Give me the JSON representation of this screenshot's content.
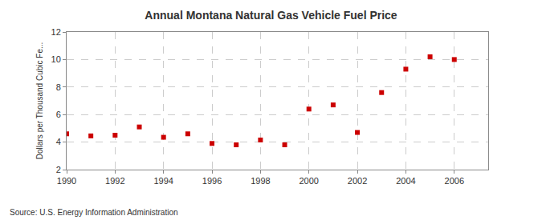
{
  "chart_data": {
    "type": "scatter",
    "title": "Annual Montana Natural Gas Vehicle Fuel Price",
    "y_label": "Dollars per Thousand Cubic Fe...",
    "annotations": [
      "Source: U.S. Energy Information Administration"
    ],
    "x": [
      1990,
      1991,
      1992,
      1993,
      1994,
      1995,
      1996,
      1997,
      1998,
      1999,
      2000,
      2001,
      2002,
      2003,
      2004,
      2005,
      2006
    ],
    "values": [
      4.6,
      4.45,
      4.5,
      5.1,
      4.35,
      4.6,
      3.9,
      3.8,
      4.15,
      3.8,
      6.4,
      6.7,
      4.7,
      7.6,
      9.3,
      10.2,
      10.0
    ],
    "color": "#cc0000",
    "marker": "square",
    "xlim": [
      1990,
      2007.4
    ],
    "xticks": [
      1990,
      1992,
      1994,
      1996,
      1998,
      2000,
      2002,
      2004,
      2006
    ],
    "ylim": [
      2,
      12
    ],
    "yticks": [
      2,
      4,
      6,
      8,
      10,
      12
    ],
    "grid": true
  }
}
